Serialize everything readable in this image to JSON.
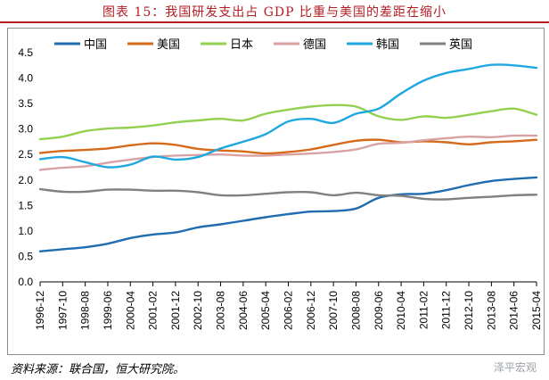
{
  "header": {
    "title": "图表 15：我国研发支出占 GDP 比重与美国的差距在缩小"
  },
  "footer": {
    "source": "资料来源：联合国，恒大研究院。",
    "watermark": "泽平宏观"
  },
  "chart_data": {
    "type": "line",
    "title": "",
    "xlabel": "",
    "ylabel": "",
    "ylim": [
      0,
      4.5
    ],
    "yticks": [
      "0.0",
      "0.5",
      "1.0",
      "1.5",
      "2.0",
      "2.5",
      "3.0",
      "3.5",
      "4.0",
      "4.5"
    ],
    "grid": false,
    "legend_position": "top",
    "categories": [
      "1996-12",
      "1997-10",
      "1998-08",
      "1999-06",
      "2000-04",
      "2001-02",
      "2001-12",
      "2002-10",
      "2003-08",
      "2004-06",
      "2005-04",
      "2006-02",
      "2006-12",
      "2007-10",
      "2008-08",
      "2009-06",
      "2010-04",
      "2011-02",
      "2011-12",
      "2012-10",
      "2013-08",
      "2014-06",
      "2015-04"
    ],
    "series": [
      {
        "name": "中国",
        "color": "#1f6cb0",
        "values": [
          0.6,
          0.64,
          0.68,
          0.75,
          0.86,
          0.93,
          0.97,
          1.07,
          1.13,
          1.2,
          1.27,
          1.33,
          1.38,
          1.39,
          1.44,
          1.65,
          1.72,
          1.73,
          1.8,
          1.9,
          1.98,
          2.02,
          2.05
        ]
      },
      {
        "name": "美国",
        "color": "#d46a1a",
        "values": [
          2.53,
          2.57,
          2.59,
          2.62,
          2.68,
          2.72,
          2.69,
          2.61,
          2.58,
          2.56,
          2.52,
          2.55,
          2.6,
          2.69,
          2.77,
          2.79,
          2.74,
          2.76,
          2.74,
          2.7,
          2.74,
          2.76,
          2.79
        ]
      },
      {
        "name": "日本",
        "color": "#92d050",
        "values": [
          2.8,
          2.85,
          2.96,
          3.01,
          3.03,
          3.07,
          3.13,
          3.17,
          3.2,
          3.17,
          3.3,
          3.38,
          3.44,
          3.47,
          3.44,
          3.25,
          3.18,
          3.25,
          3.22,
          3.28,
          3.35,
          3.4,
          3.28
        ]
      },
      {
        "name": "德国",
        "color": "#d9a2a2",
        "values": [
          2.2,
          2.24,
          2.27,
          2.34,
          2.4,
          2.45,
          2.48,
          2.49,
          2.5,
          2.48,
          2.48,
          2.5,
          2.52,
          2.55,
          2.6,
          2.71,
          2.73,
          2.78,
          2.82,
          2.85,
          2.84,
          2.87,
          2.87
        ]
      },
      {
        "name": "韩国",
        "color": "#1fa8e0",
        "values": [
          2.41,
          2.45,
          2.35,
          2.25,
          2.3,
          2.46,
          2.4,
          2.45,
          2.62,
          2.75,
          2.9,
          3.15,
          3.2,
          3.12,
          3.3,
          3.4,
          3.7,
          3.95,
          4.1,
          4.18,
          4.26,
          4.25,
          4.2
        ]
      },
      {
        "name": "英国",
        "color": "#808080",
        "values": [
          1.82,
          1.77,
          1.77,
          1.81,
          1.81,
          1.79,
          1.79,
          1.76,
          1.7,
          1.7,
          1.73,
          1.76,
          1.76,
          1.7,
          1.75,
          1.7,
          1.69,
          1.63,
          1.62,
          1.65,
          1.67,
          1.7,
          1.71
        ]
      }
    ]
  }
}
